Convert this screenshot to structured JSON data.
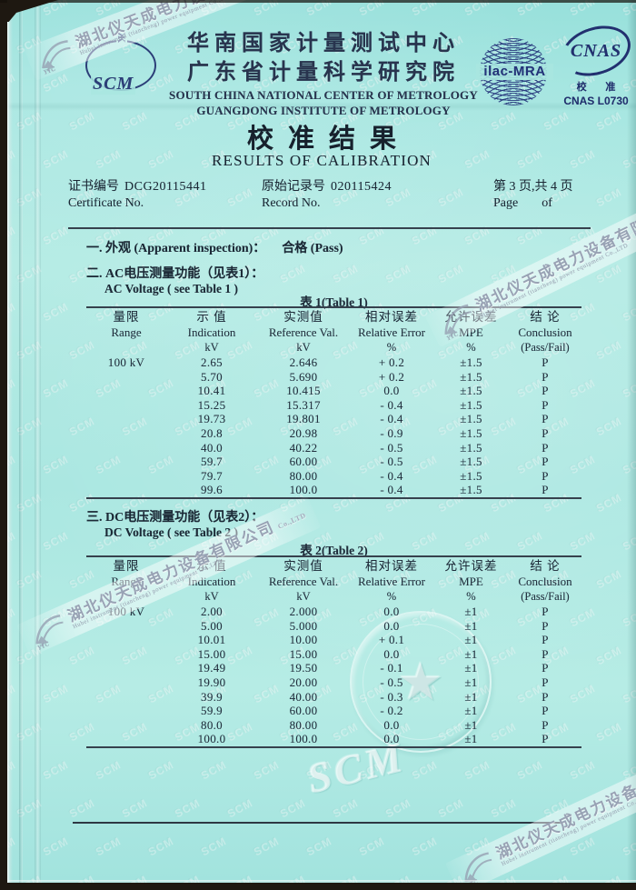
{
  "scan": {
    "company_cn": "湖北仪天成电力设备有限公司",
    "company_en": "Hubei instrument (tiancheng) power equipment Co.,LTD",
    "company_suffix": "Co.,LTD",
    "watermark_logo": "YTC",
    "ghost_text": "SCM",
    "texture_text": "SCM"
  },
  "header": {
    "scm_label": "SCM",
    "scm_mark": "Ж",
    "org_cn1": "华南国家计量测试中心",
    "org_cn2": "广东省计量科学研究院",
    "org_en1": "SOUTH CHINA NATIONAL CENTER OF METROLOGY",
    "org_en2": "GUANGDONG INSTITUTE OF METROLOGY",
    "ilac_label": "ilac-MRA",
    "cnas_label": "CNAS",
    "cnas_cn": "校 准",
    "cnas_code": "CNAS L0730"
  },
  "title": {
    "cn": "校准结果",
    "en": "RESULTS OF CALIBRATION"
  },
  "certificate": {
    "no_label_cn": "证书编号",
    "no_value": "DCG20115441",
    "no_label_en": "Certificate No.",
    "record_label_cn": "原始记录号",
    "record_value": "020115424",
    "record_label_en": "Record No.",
    "page_cn": "第 3 页,共 4 页",
    "page_en_1": "Page",
    "page_en_2": "of"
  },
  "sections": {
    "s1": {
      "heading": "一. 外观 (Apparent inspection)：",
      "result": "合格 (Pass)"
    },
    "s2": {
      "cn": "二. AC电压测量功能（见表1）：",
      "en": "AC Voltage ( see Table 1 )"
    },
    "s3": {
      "cn": "三. DC电压测量功能（见表2）：",
      "en": "DC Voltage ( see Table 2 )"
    }
  },
  "columns": [
    {
      "cn": "量限",
      "en": "Range",
      "unit": ""
    },
    {
      "cn": "示 值",
      "en": "Indication",
      "unit": "kV"
    },
    {
      "cn": "实测值",
      "en": "Reference Val.",
      "unit": "kV"
    },
    {
      "cn": "相对误差",
      "en": "Relative Error",
      "unit": "%"
    },
    {
      "cn": "允许误差",
      "en": "MPE",
      "unit": "%"
    },
    {
      "cn": "结 论",
      "en": "Conclusion",
      "unit": "(Pass/Fail)"
    }
  ],
  "table1": {
    "title": "表 1(Table 1)",
    "rows": [
      [
        "100 kV",
        "2.65",
        "2.646",
        "+ 0.2",
        "±1.5",
        "P"
      ],
      [
        "",
        "5.70",
        "5.690",
        "+ 0.2",
        "±1.5",
        "P"
      ],
      [
        "",
        "10.41",
        "10.415",
        "0.0",
        "±1.5",
        "P"
      ],
      [
        "",
        "15.25",
        "15.317",
        "- 0.4",
        "±1.5",
        "P"
      ],
      [
        "",
        "19.73",
        "19.801",
        "- 0.4",
        "±1.5",
        "P"
      ],
      [
        "",
        "20.8",
        "20.98",
        "- 0.9",
        "±1.5",
        "P"
      ],
      [
        "",
        "40.0",
        "40.22",
        "- 0.5",
        "±1.5",
        "P"
      ],
      [
        "",
        "59.7",
        "60.00",
        "- 0.5",
        "±1.5",
        "P"
      ],
      [
        "",
        "79.7",
        "80.00",
        "- 0.4",
        "±1.5",
        "P"
      ],
      [
        "",
        "99.6",
        "100.0",
        "- 0.4",
        "±1.5",
        "P"
      ]
    ]
  },
  "table2": {
    "title": "表 2(Table 2)",
    "rows": [
      [
        "100 kV",
        "2.00",
        "2.000",
        "0.0",
        "±1",
        "P"
      ],
      [
        "",
        "5.00",
        "5.000",
        "0.0",
        "±1",
        "P"
      ],
      [
        "",
        "10.01",
        "10.00",
        "+ 0.1",
        "±1",
        "P"
      ],
      [
        "",
        "15.00",
        "15.00",
        "0.0",
        "±1",
        "P"
      ],
      [
        "",
        "19.49",
        "19.50",
        "- 0.1",
        "±1",
        "P"
      ],
      [
        "",
        "19.90",
        "20.00",
        "- 0.5",
        "±1",
        "P"
      ],
      [
        "",
        "39.9",
        "40.00",
        "- 0.3",
        "±1",
        "P"
      ],
      [
        "",
        "59.9",
        "60.00",
        "- 0.2",
        "±1",
        "P"
      ],
      [
        "",
        "80.0",
        "80.00",
        "0.0",
        "±1",
        "P"
      ],
      [
        "",
        "100.0",
        "100.0",
        "0.0",
        "±1",
        "P"
      ]
    ]
  },
  "colors": {
    "paper": "#aae7e1",
    "ink": "#1d2a37",
    "logo_navy": "#22306f",
    "watermark_gray": "#98a2b4"
  }
}
